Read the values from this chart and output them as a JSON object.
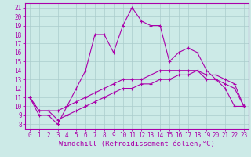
{
  "title": "",
  "xlabel": "Windchill (Refroidissement éolien,°C)",
  "xlim": [
    -0.5,
    23.5
  ],
  "ylim": [
    7.5,
    21.5
  ],
  "yticks": [
    8,
    9,
    10,
    11,
    12,
    13,
    14,
    15,
    16,
    17,
    18,
    19,
    20,
    21
  ],
  "xticks": [
    0,
    1,
    2,
    3,
    4,
    5,
    6,
    7,
    8,
    9,
    10,
    11,
    12,
    13,
    14,
    15,
    16,
    17,
    18,
    19,
    20,
    21,
    22,
    23
  ],
  "bg_color": "#cceae7",
  "line_color": "#aa00aa",
  "grid_color": "#aacccc",
  "line1_y": [
    11.0,
    9.0,
    9.0,
    8.0,
    10.0,
    12.0,
    14.0,
    18.0,
    18.0,
    16.0,
    19.0,
    21.0,
    19.5,
    19.0,
    19.0,
    15.0,
    16.0,
    16.5,
    16.0,
    14.0,
    13.0,
    12.0,
    10.0,
    10.0
  ],
  "line2_y": [
    11.0,
    9.5,
    9.5,
    9.5,
    10.0,
    10.5,
    11.0,
    11.5,
    12.0,
    12.5,
    13.0,
    13.0,
    13.0,
    13.5,
    14.0,
    14.0,
    14.0,
    14.0,
    14.0,
    13.0,
    13.0,
    12.5,
    12.0,
    10.0
  ],
  "line3_y": [
    11.0,
    9.5,
    9.5,
    8.5,
    9.0,
    9.5,
    10.0,
    10.5,
    11.0,
    11.5,
    12.0,
    12.0,
    12.5,
    12.5,
    13.0,
    13.0,
    13.5,
    13.5,
    14.0,
    13.5,
    13.5,
    13.0,
    12.5,
    10.0
  ],
  "tick_fontsize": 5.5,
  "xlabel_fontsize": 6.5,
  "font_name": "monospace"
}
